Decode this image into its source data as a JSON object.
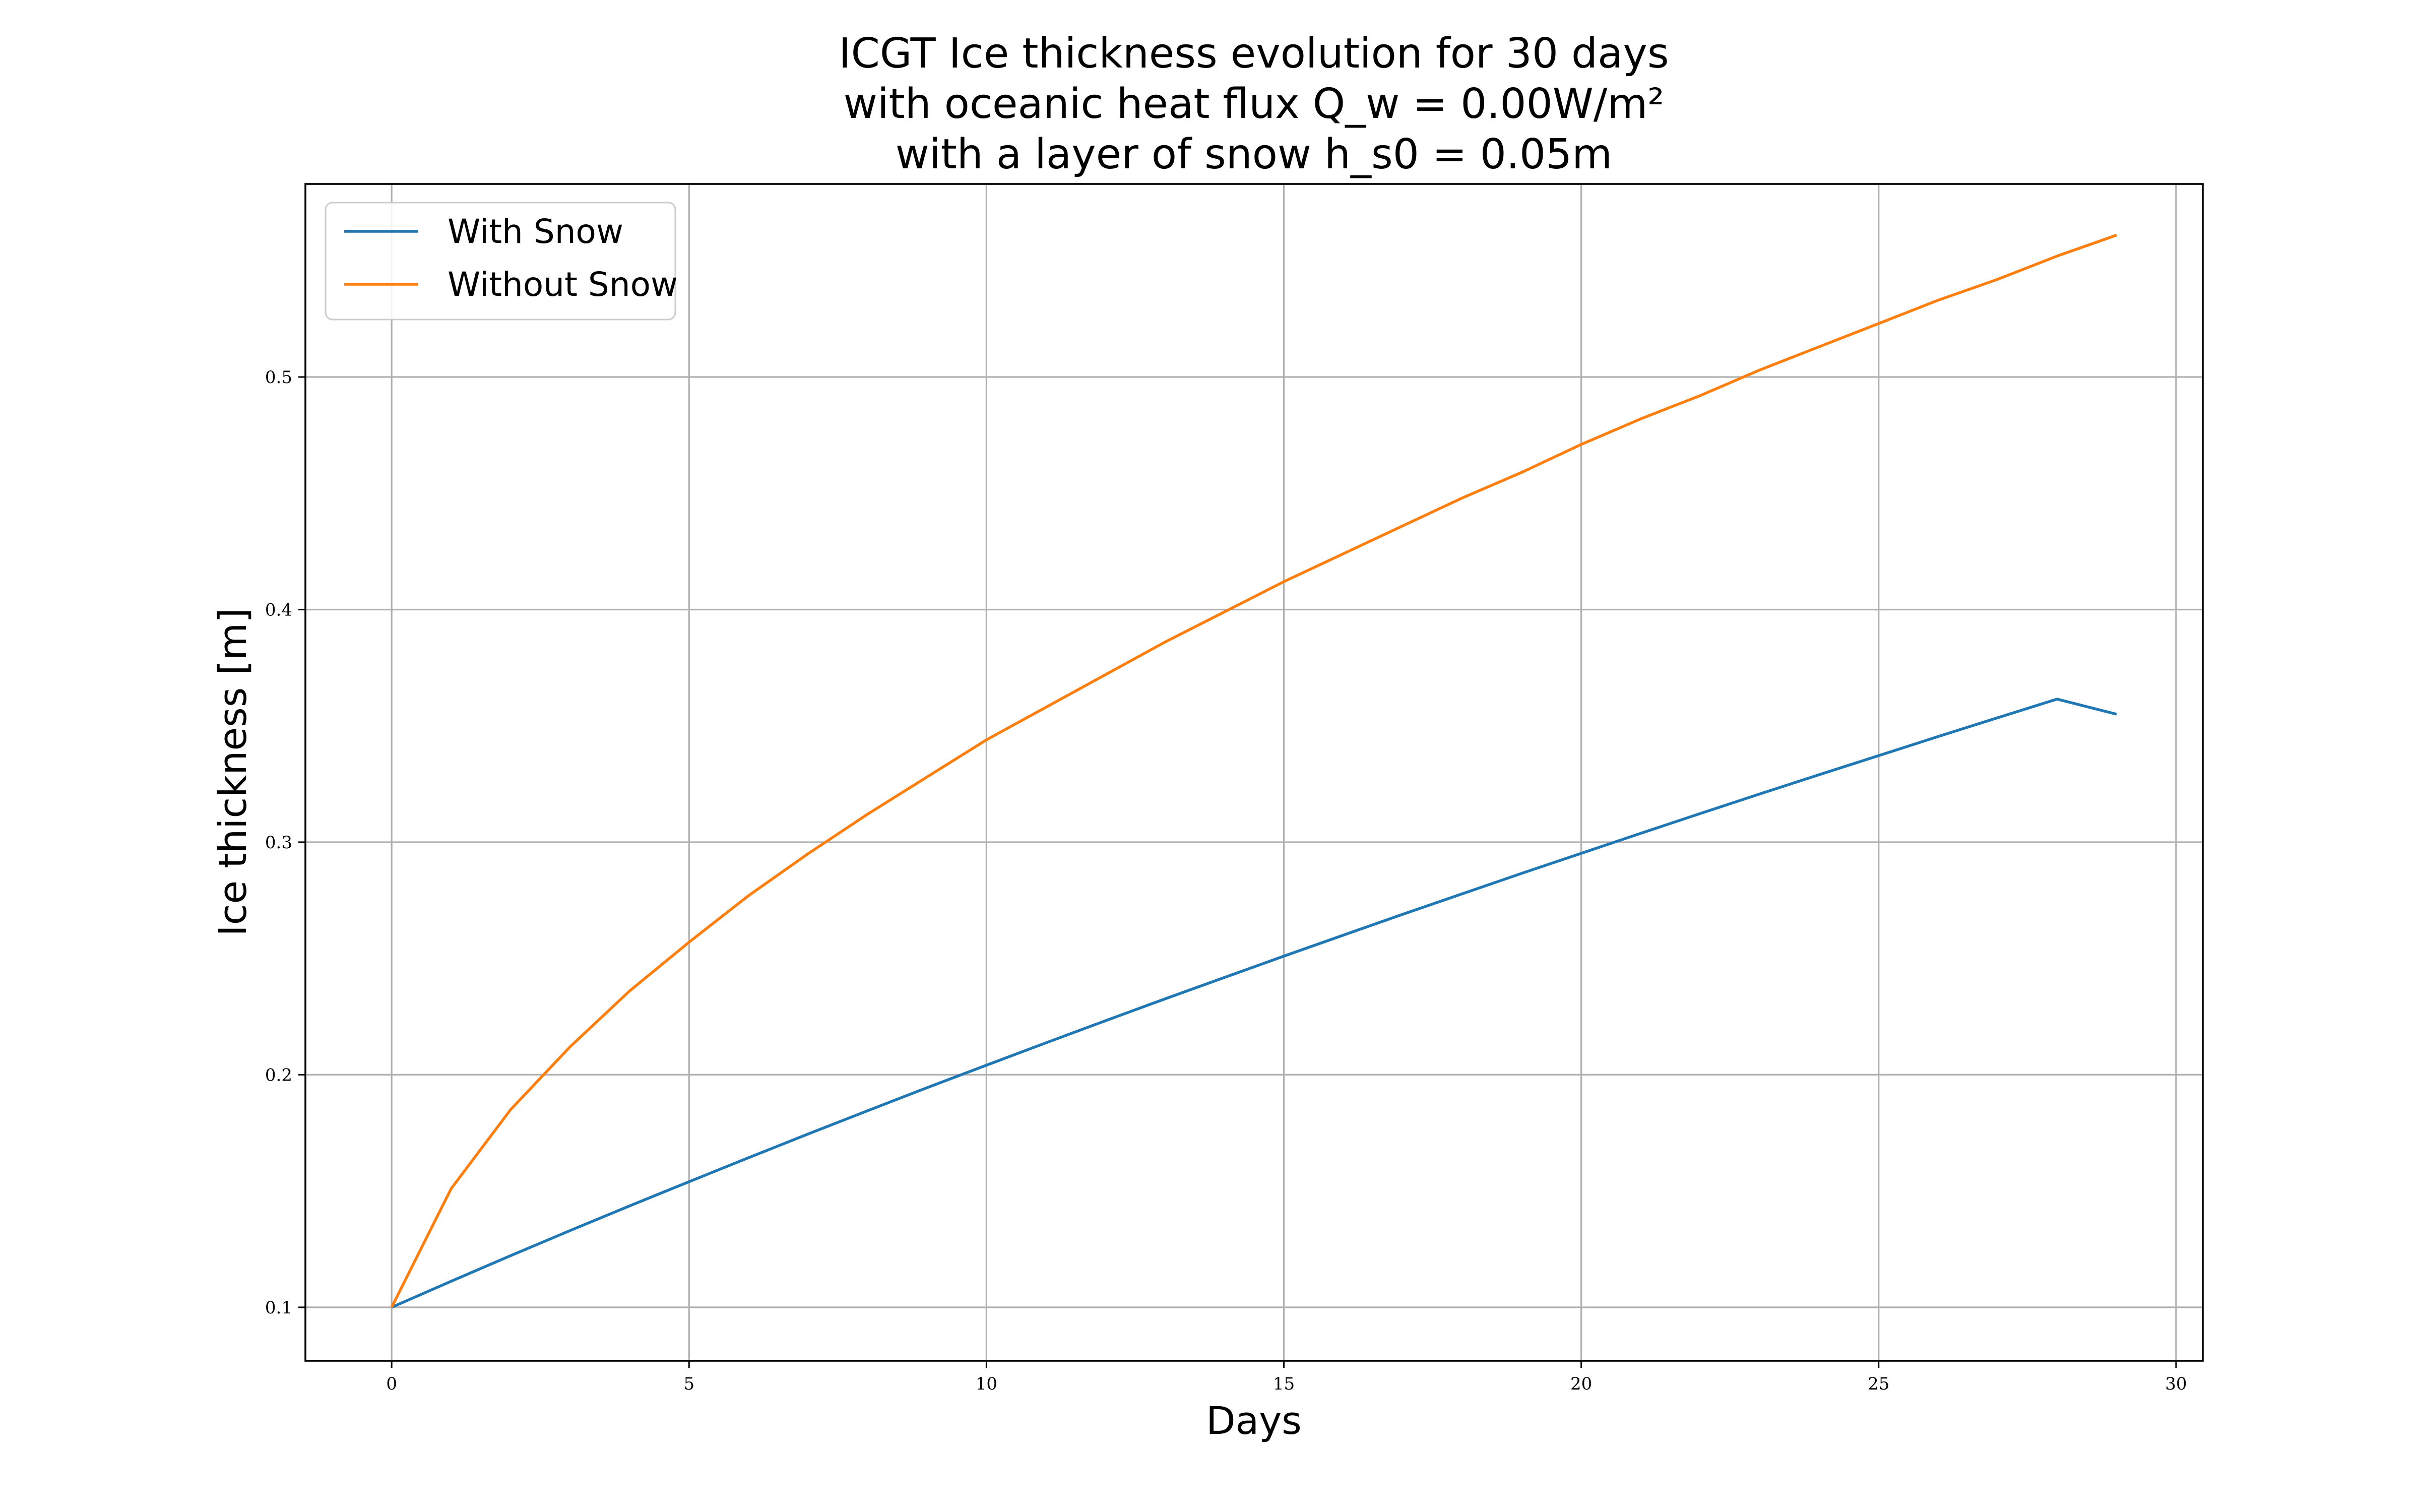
{
  "chart_data": {
    "type": "line",
    "title_lines": [
      "ICGT Ice thickness evolution for 30 days",
      "with oceanic heat flux Q_w = 0.00W/m²",
      "with a layer of snow h_s0 = 0.05m"
    ],
    "xlabel": "Days",
    "ylabel": "Ice thickness [m]",
    "xlim": [
      -1.45,
      30.45
    ],
    "ylim": [
      0.077,
      0.583
    ],
    "xticks": [
      0,
      5,
      10,
      15,
      20,
      25,
      30
    ],
    "yticks": [
      0.1,
      0.2,
      0.3,
      0.4,
      0.5
    ],
    "grid": true,
    "legend": {
      "placement": "top-left",
      "entries": [
        "With Snow",
        "Without Snow"
      ]
    },
    "x": [
      0,
      1,
      2,
      3,
      4,
      5,
      6,
      7,
      8,
      9,
      10,
      11,
      12,
      13,
      14,
      15,
      16,
      17,
      18,
      19,
      20,
      21,
      22,
      23,
      24,
      25,
      26,
      27,
      28,
      29
    ],
    "series": [
      {
        "name": "With Snow",
        "color": "#1f77b4",
        "values": [
          0.1,
          0.1112,
          0.1222,
          0.133,
          0.1436,
          0.154,
          0.1643,
          0.1745,
          0.1845,
          0.1944,
          0.2041,
          0.2137,
          0.2232,
          0.2326,
          0.2418,
          0.251,
          0.26,
          0.269,
          0.2778,
          0.2866,
          0.2952,
          0.3038,
          0.3123,
          0.3207,
          0.329,
          0.3372,
          0.3454,
          0.3535,
          0.3615,
          0.355
        ]
      },
      {
        "name": "Without Snow",
        "color": "#ff7f0e",
        "values": [
          0.1,
          0.151,
          0.185,
          0.212,
          0.236,
          0.257,
          0.277,
          0.295,
          0.312,
          0.328,
          0.344,
          0.358,
          0.372,
          0.386,
          0.399,
          0.412,
          0.424,
          0.436,
          0.448,
          0.459,
          0.471,
          0.482,
          0.492,
          0.503,
          0.513,
          0.523,
          0.533,
          0.542,
          0.552,
          0.561
        ]
      }
    ]
  }
}
